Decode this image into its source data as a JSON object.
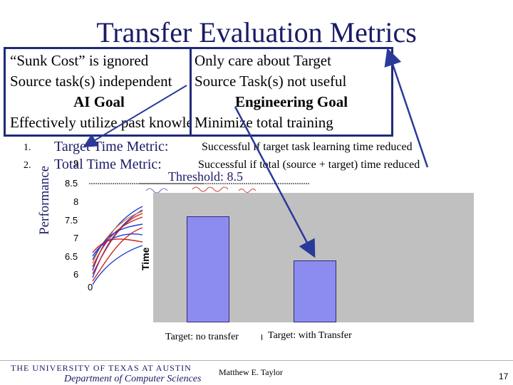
{
  "title": "Transfer Evaluation Metrics",
  "left_box": {
    "line1": "“Sunk Cost” is ignored",
    "line2": "Source task(s) independent",
    "goal": "AI Goal",
    "line4": "Effectively utilize past knowledge"
  },
  "right_box": {
    "line1": "Only care about Target",
    "line2": "Source Task(s) not useful",
    "goal": "Engineering Goal",
    "line4": "Minimize total training"
  },
  "metrics": [
    {
      "num": "1.",
      "name": "Target Time Metric:",
      "desc": "Successful if target task learning time reduced"
    },
    {
      "num": "2.",
      "name": "Total Time Metric:",
      "desc": "Successful if total (source + target) time reduced"
    }
  ],
  "performance_label": "Performance",
  "threshold_label": "Threshold: 8.5",
  "line_chart": {
    "y_ticks": [
      "9",
      "8.5",
      "8",
      "7.5",
      "7",
      "6.5",
      "6"
    ],
    "x_tick": "0"
  },
  "chart_data": {
    "type": "bar",
    "categories": [
      "Target: no transfer",
      "Target: with Transfer"
    ],
    "values": [
      0.82,
      0.48
    ],
    "ylabel": "Time",
    "x_tick": "0"
  },
  "footer": {
    "university": "THE UNIVERSITY OF TEXAS AT AUSTIN",
    "department": "Department of Computer Sciences",
    "author": "Matthew E. Taylor",
    "page": "17"
  },
  "colors": {
    "title": "#1a1a66",
    "box_border": "#1e2a78",
    "bar_fill": "#8c8cf0",
    "plot_bg": "#c0c0c0",
    "arrow": "#2a3a9a"
  }
}
